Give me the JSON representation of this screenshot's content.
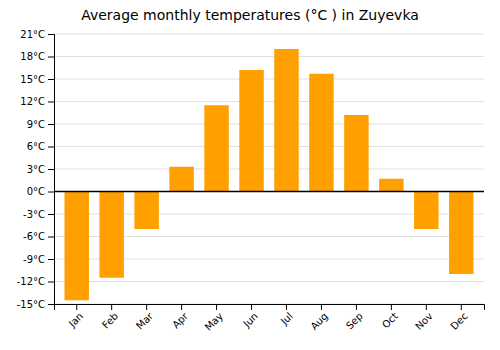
{
  "chart_data": {
    "type": "bar",
    "title": "Average monthly temperatures (°C ) in Zuyevka",
    "categories": [
      "Jan",
      "Feb",
      "Mar",
      "Apr",
      "May",
      "Jun",
      "Jul",
      "Aug",
      "Sep",
      "Oct",
      "Nov",
      "Dec"
    ],
    "values": [
      -14.5,
      -11.5,
      -5.0,
      3.3,
      11.5,
      16.2,
      19.0,
      15.7,
      10.2,
      1.7,
      -5.0,
      -11.0
    ],
    "color": "#FFA000",
    "ylim": [
      -15,
      21
    ],
    "yticks": [
      {
        "value": -15,
        "label": "-15°C"
      },
      {
        "value": -12,
        "label": "-12°C"
      },
      {
        "value": -9,
        "label": "-9°C"
      },
      {
        "value": -6,
        "label": "-6°C"
      },
      {
        "value": -3,
        "label": "-3°C"
      },
      {
        "value": 0,
        "label": "0°C"
      },
      {
        "value": 3,
        "label": "3°C"
      },
      {
        "value": 6,
        "label": "6°C"
      },
      {
        "value": 9,
        "label": "9°C"
      },
      {
        "value": 12,
        "label": "12°C"
      },
      {
        "value": 15,
        "label": "15°C"
      },
      {
        "value": 18,
        "label": "18°C"
      },
      {
        "value": 21,
        "label": "21°C"
      }
    ],
    "grid": true
  }
}
